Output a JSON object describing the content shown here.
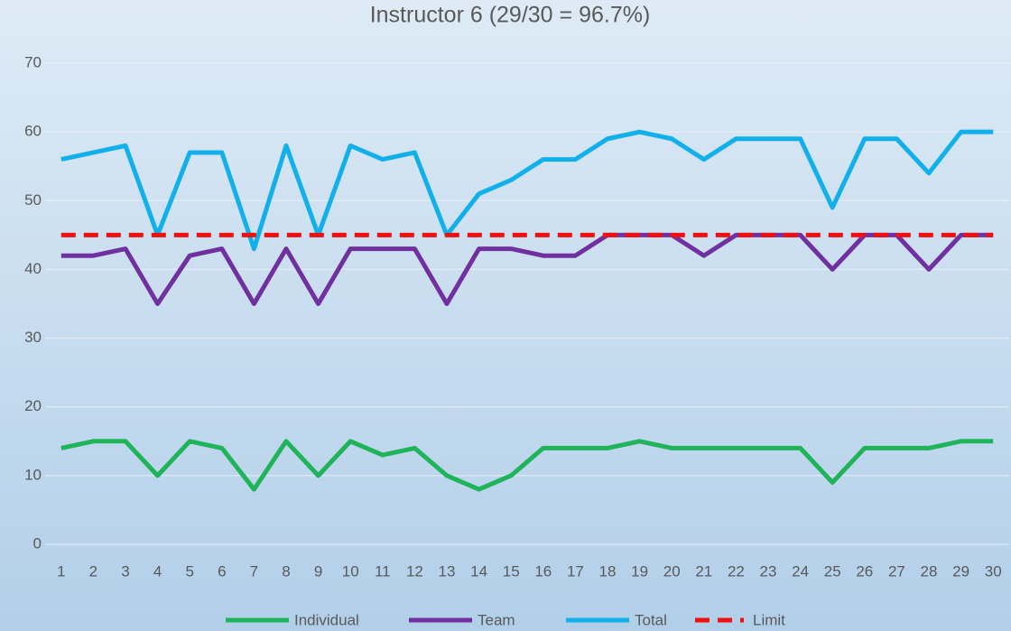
{
  "chart_data": {
    "type": "line",
    "title": "Instructor 6 (29/30 = 96.7%)",
    "categories": [
      1,
      2,
      3,
      4,
      5,
      6,
      7,
      8,
      9,
      10,
      11,
      12,
      13,
      14,
      15,
      16,
      17,
      18,
      19,
      20,
      21,
      22,
      23,
      24,
      25,
      26,
      27,
      28,
      29,
      30
    ],
    "series": [
      {
        "name": "Individual",
        "color": "#1fb35a",
        "values": [
          14,
          15,
          15,
          10,
          15,
          14,
          8,
          15,
          10,
          15,
          13,
          14,
          10,
          8,
          10,
          14,
          14,
          14,
          15,
          14,
          14,
          14,
          14,
          14,
          9,
          14,
          14,
          14,
          15,
          15
        ]
      },
      {
        "name": "Team",
        "color": "#7030a0",
        "values": [
          42,
          42,
          43,
          35,
          42,
          43,
          35,
          43,
          35,
          43,
          43,
          43,
          35,
          43,
          43,
          42,
          42,
          45,
          45,
          45,
          42,
          45,
          45,
          45,
          40,
          45,
          45,
          40,
          45,
          45
        ]
      },
      {
        "name": "Total",
        "color": "#12b0ea",
        "values": [
          56,
          57,
          58,
          45,
          57,
          57,
          43,
          58,
          45,
          58,
          56,
          57,
          45,
          51,
          53,
          56,
          56,
          59,
          60,
          59,
          56,
          59,
          59,
          59,
          49,
          59,
          59,
          54,
          60,
          60
        ]
      },
      {
        "name": "Limit",
        "color": "#f20f0f",
        "dashed": true,
        "values": [
          45,
          45,
          45,
          45,
          45,
          45,
          45,
          45,
          45,
          45,
          45,
          45,
          45,
          45,
          45,
          45,
          45,
          45,
          45,
          45,
          45,
          45,
          45,
          45,
          45,
          45,
          45,
          45,
          45,
          45
        ]
      }
    ],
    "ylim": [
      0,
      70
    ],
    "yticks": [
      0,
      10,
      20,
      30,
      40,
      50,
      60,
      70
    ],
    "grid": true,
    "legend": "bottom"
  }
}
